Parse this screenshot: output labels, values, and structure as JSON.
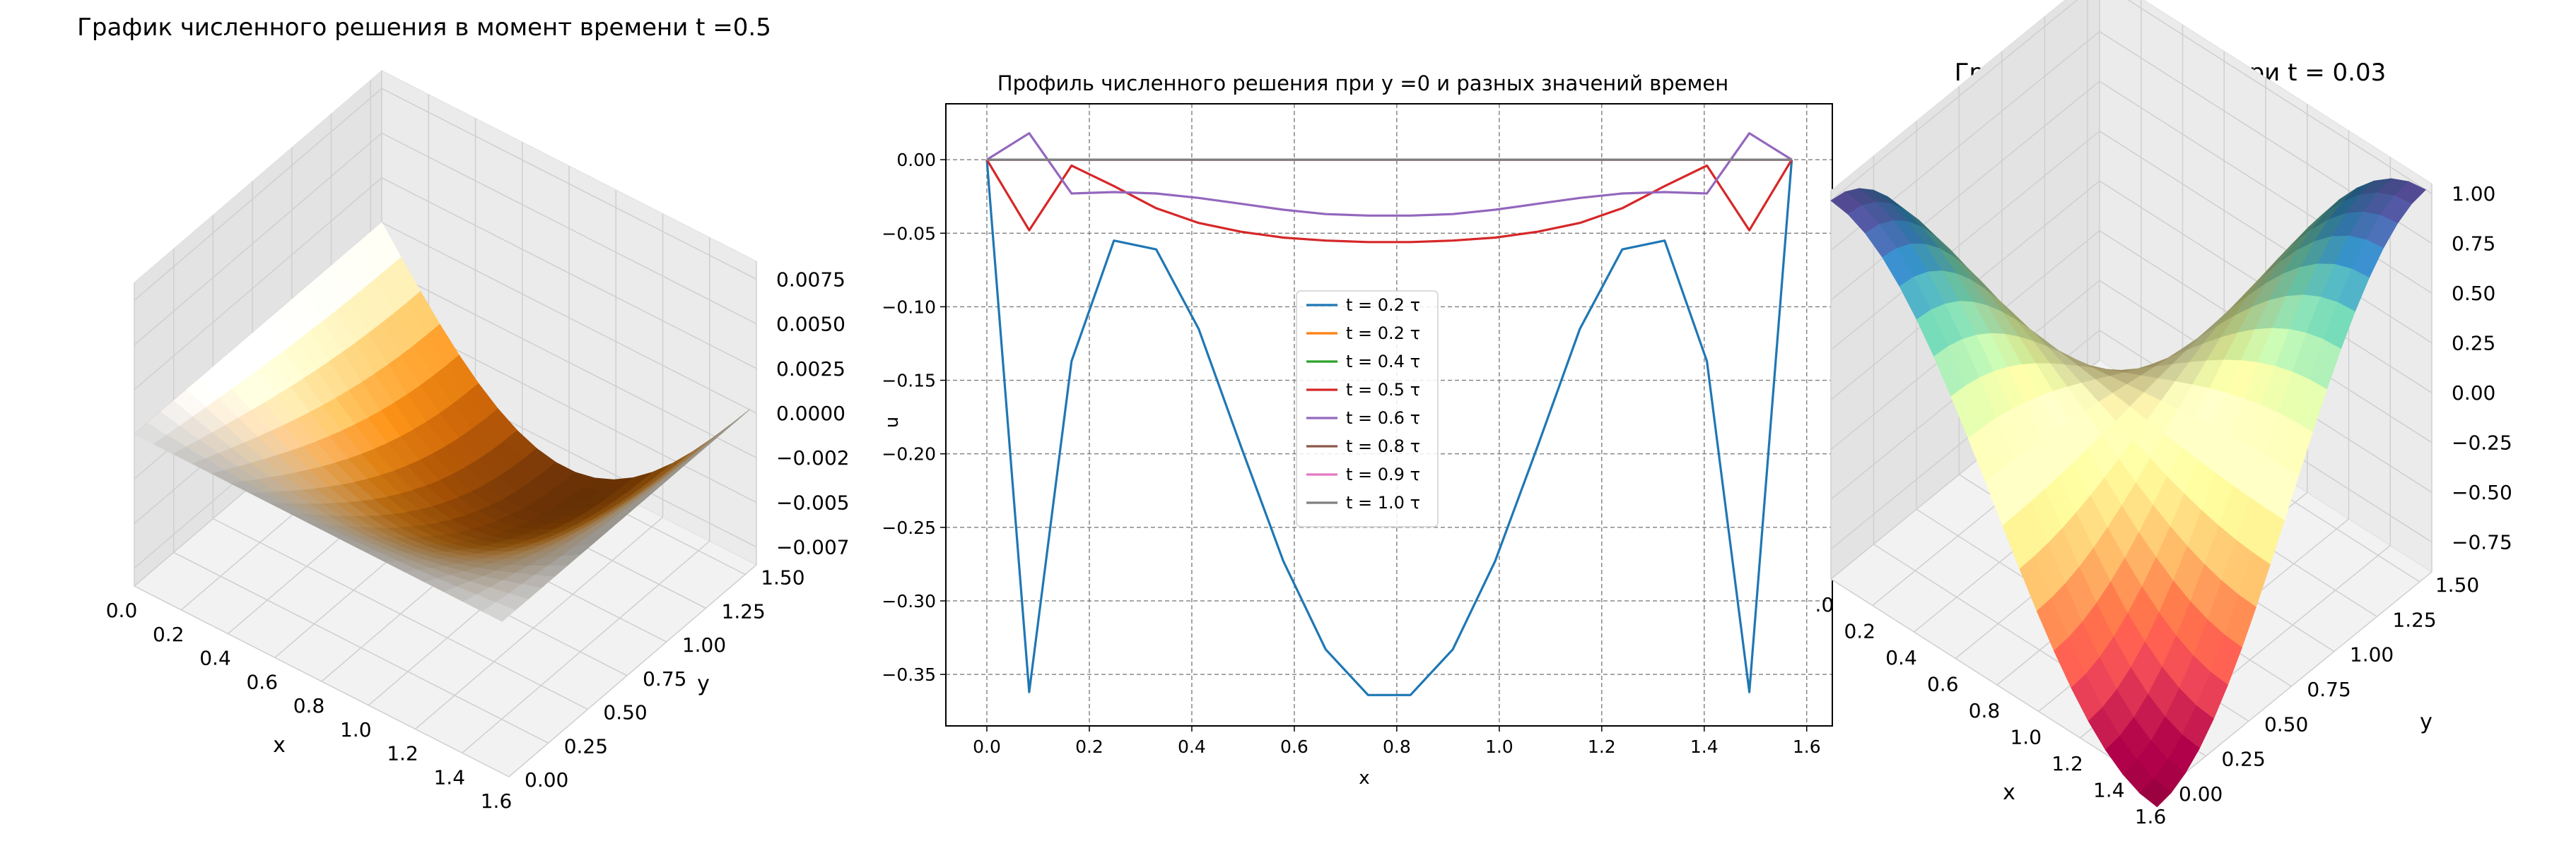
{
  "chart_data": [
    {
      "type": "surface",
      "title": "График численного решения в момент времени t =0.5",
      "xlabel": "x",
      "ylabel": "y",
      "zlabel": "",
      "colormap": "PuOr",
      "xlim": [
        0,
        1.6
      ],
      "ylim": [
        0,
        1.5708
      ],
      "zlim": [
        -0.0085,
        0.0085
      ],
      "x_ticks": [
        "0.0",
        "0.2",
        "0.4",
        "0.6",
        "0.8",
        "1.0",
        "1.2",
        "1.4",
        "1.6"
      ],
      "y_ticks": [
        "0.00",
        "0.25",
        "0.50",
        "0.75",
        "1.00",
        "1.25",
        "1.50"
      ],
      "z_ticks": [
        "−0.0075",
        "−0.0050",
        "−0.0025",
        "0.0000",
        "0.0025",
        "0.0050",
        "0.0075"
      ],
      "surface": "u(x,y) ≈ −0.0085·sin(2x)·sin(y)"
    },
    {
      "type": "line",
      "title": "Профиль численного решения при y =0 и разных значений времен",
      "xlabel": "x",
      "ylabel": "u",
      "xlim": [
        -0.08,
        1.65
      ],
      "ylim": [
        -0.385,
        0.038
      ],
      "grid": true,
      "legend": "center",
      "x_ticks": [
        "0.0",
        "0.2",
        "0.4",
        "0.6",
        "0.8",
        "1.0",
        "1.2",
        "1.4",
        "1.6"
      ],
      "y_ticks": [
        "0.00",
        "−0.05",
        "−0.10",
        "−0.15",
        "−0.20",
        "−0.25",
        "−0.30",
        "−0.35"
      ],
      "x": [
        0,
        0.0826,
        0.1653,
        0.248,
        0.3306,
        0.4133,
        0.496,
        0.5786,
        0.6613,
        0.744,
        0.8267,
        0.9093,
        0.992,
        1.0747,
        1.1573,
        1.24,
        1.3227,
        1.4053,
        1.488,
        1.5708
      ],
      "series": [
        {
          "name": "t = 0.2 τ",
          "color": "#1f77b4",
          "values": [
            0,
            -0.362,
            -0.137,
            -0.055,
            -0.061,
            -0.115,
            -0.195,
            -0.273,
            -0.333,
            -0.364,
            -0.364,
            -0.333,
            -0.273,
            -0.195,
            -0.115,
            -0.061,
            -0.055,
            -0.137,
            -0.362,
            0
          ]
        },
        {
          "name": "t = 0.2 τ",
          "color": "#ff7f0e",
          "values": [
            0,
            0,
            0,
            0,
            0,
            0,
            0,
            0,
            0,
            0,
            0,
            0,
            0,
            0,
            0,
            0,
            0,
            0,
            0,
            0
          ]
        },
        {
          "name": "t = 0.4 τ",
          "color": "#2ca02c",
          "values": [
            0,
            0,
            0,
            0,
            0,
            0,
            0,
            0,
            0,
            0,
            0,
            0,
            0,
            0,
            0,
            0,
            0,
            0,
            0,
            0
          ]
        },
        {
          "name": "t = 0.5 τ",
          "color": "#d62728",
          "values": [
            0,
            -0.048,
            -0.004,
            -0.018,
            -0.033,
            -0.043,
            -0.049,
            -0.053,
            -0.055,
            -0.056,
            -0.056,
            -0.055,
            -0.053,
            -0.049,
            -0.043,
            -0.033,
            -0.018,
            -0.004,
            -0.048,
            0
          ]
        },
        {
          "name": "t = 0.6 τ",
          "color": "#9467bd",
          "values": [
            0,
            0.018,
            -0.023,
            -0.022,
            -0.023,
            -0.026,
            -0.03,
            -0.034,
            -0.037,
            -0.038,
            -0.038,
            -0.037,
            -0.034,
            -0.03,
            -0.026,
            -0.023,
            -0.022,
            -0.023,
            0.018,
            0
          ]
        },
        {
          "name": "t = 0.8 τ",
          "color": "#8c564b",
          "values": [
            0,
            0,
            0,
            0,
            0,
            0,
            0,
            0,
            0,
            0,
            0,
            0,
            0,
            0,
            0,
            0,
            0,
            0,
            0,
            0
          ]
        },
        {
          "name": "t = 0.9 τ",
          "color": "#e377c2",
          "values": [
            0,
            0,
            0,
            0,
            0,
            0,
            0,
            0,
            0,
            0,
            0,
            0,
            0,
            0,
            0,
            0,
            0,
            0,
            0,
            0
          ]
        },
        {
          "name": "t = 1.0 τ",
          "color": "#7f7f7f",
          "values": [
            0,
            0,
            0,
            0,
            0,
            0,
            0,
            0,
            0,
            0,
            0,
            0,
            0,
            0,
            0,
            0,
            0,
            0,
            0,
            0
          ]
        }
      ]
    },
    {
      "type": "surface",
      "title": "График погрешности при t = 0.03",
      "xlabel": "x",
      "ylabel": "y",
      "zlabel": "",
      "colormap": "Spectral",
      "xlim": [
        0,
        1.6
      ],
      "ylim": [
        0,
        1.5708
      ],
      "zlim": [
        -0.9,
        1.05
      ],
      "x_ticks": [
        "0.0",
        "0.2",
        "0.4",
        "0.6",
        "0.8",
        "1.0",
        "1.2",
        "1.4",
        "1.6"
      ],
      "y_ticks": [
        "0.00",
        "0.25",
        "0.50",
        "0.75",
        "1.00",
        "1.25",
        "1.50"
      ],
      "z_ticks": [
        "−0.75",
        "−0.50",
        "−0.25",
        "0.00",
        "0.25",
        "0.50",
        "0.75",
        "1.00"
      ],
      "surface": "error(x,y) ≈ cos(2x)·cos(2y)"
    }
  ]
}
